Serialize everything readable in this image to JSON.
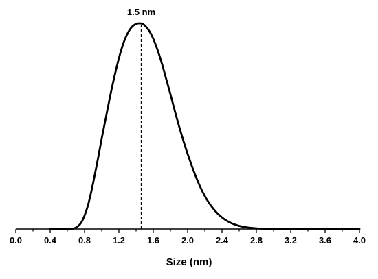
{
  "chart_data": {
    "type": "line",
    "title": "",
    "xlabel": "Size (nm)",
    "ylabel": "",
    "xlim": [
      0.0,
      4.0
    ],
    "ylim": [
      0,
      1.02
    ],
    "x_ticks": [
      0.0,
      0.4,
      0.8,
      1.2,
      1.6,
      2.0,
      2.4,
      2.8,
      3.2,
      3.6,
      4.0
    ],
    "x_tick_labels": [
      "0.0",
      "0.4",
      "0.8",
      "1.2",
      "1.6",
      "2.0",
      "2.4",
      "2.8",
      "3.2",
      "3.6",
      "4.0"
    ],
    "y_axis_visible": false,
    "grid": false,
    "series": [
      {
        "color": "#000000",
        "x": [
          0.4,
          0.6,
          0.68,
          0.72,
          0.76,
          0.8,
          0.84,
          0.88,
          0.92,
          0.96,
          1.0,
          1.05,
          1.1,
          1.15,
          1.2,
          1.25,
          1.3,
          1.35,
          1.4,
          1.44,
          1.47,
          1.5,
          1.55,
          1.6,
          1.65,
          1.7,
          1.75,
          1.8,
          1.85,
          1.9,
          1.95,
          2.0,
          2.1,
          2.2,
          2.3,
          2.4,
          2.5,
          2.6,
          2.7,
          2.8,
          2.9,
          3.0,
          3.2,
          3.6,
          4.0
        ],
        "y": [
          0.0,
          0.0,
          0.003,
          0.012,
          0.03,
          0.065,
          0.115,
          0.185,
          0.265,
          0.35,
          0.44,
          0.545,
          0.65,
          0.745,
          0.83,
          0.9,
          0.95,
          0.982,
          0.997,
          1.0,
          0.998,
          0.99,
          0.965,
          0.925,
          0.87,
          0.805,
          0.73,
          0.655,
          0.575,
          0.5,
          0.43,
          0.365,
          0.25,
          0.16,
          0.098,
          0.056,
          0.03,
          0.015,
          0.007,
          0.003,
          0.001,
          0.0,
          0.0,
          0.0,
          0.0
        ]
      }
    ],
    "annotations": [
      {
        "text": "1.5 nm",
        "x": 1.46,
        "style": "dashed-vertical-line"
      }
    ]
  }
}
